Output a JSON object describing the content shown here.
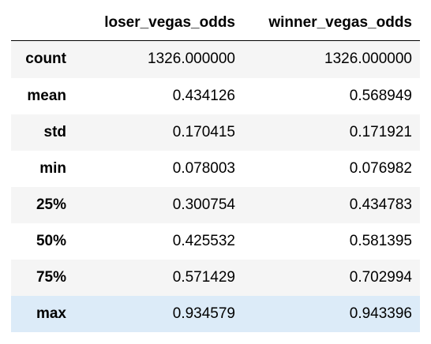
{
  "table": {
    "columns": [
      "loser_vegas_odds",
      "winner_vegas_odds"
    ],
    "rows": [
      {
        "label": "count",
        "values": [
          "1326.000000",
          "1326.000000"
        ]
      },
      {
        "label": "mean",
        "values": [
          "0.434126",
          "0.568949"
        ]
      },
      {
        "label": "std",
        "values": [
          "0.170415",
          "0.171921"
        ]
      },
      {
        "label": "min",
        "values": [
          "0.078003",
          "0.076982"
        ]
      },
      {
        "label": "25%",
        "values": [
          "0.300754",
          "0.434783"
        ]
      },
      {
        "label": "50%",
        "values": [
          "0.425532",
          "0.581395"
        ]
      },
      {
        "label": "75%",
        "values": [
          "0.571429",
          "0.702994"
        ]
      },
      {
        "label": "max",
        "values": [
          "0.934579",
          "0.943396"
        ]
      }
    ],
    "hovered_row": "max"
  },
  "colors": {
    "stripe": "#f5f5f5",
    "hover": "#dcebf8",
    "header_rule": "#000000"
  }
}
